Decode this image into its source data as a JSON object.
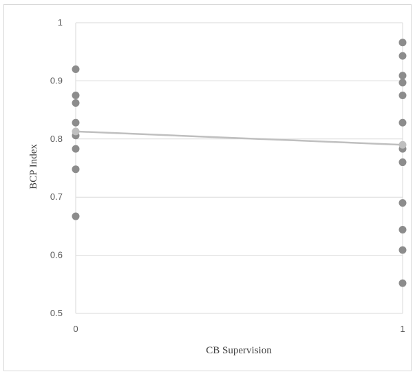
{
  "chart_data": {
    "type": "scatter",
    "xlabel": "CB Supervision",
    "ylabel": "BCP Index",
    "xlim": [
      0,
      1
    ],
    "ylim": [
      0.5,
      1
    ],
    "x_ticks": [
      "0",
      "1"
    ],
    "y_ticks": [
      "0.5",
      "0.6",
      "0.7",
      "0.8",
      "0.9",
      "1"
    ],
    "grid": "horizontal",
    "legend": "none",
    "series": [
      {
        "type": "scatter",
        "color": "#8c8c8c",
        "points": [
          {
            "x": 0,
            "y": 0.92
          },
          {
            "x": 0,
            "y": 0.875
          },
          {
            "x": 0,
            "y": 0.862
          },
          {
            "x": 0,
            "y": 0.828
          },
          {
            "x": 0,
            "y": 0.806
          },
          {
            "x": 0,
            "y": 0.783
          },
          {
            "x": 0,
            "y": 0.748
          },
          {
            "x": 0,
            "y": 0.667
          },
          {
            "x": 1,
            "y": 0.966
          },
          {
            "x": 1,
            "y": 0.943
          },
          {
            "x": 1,
            "y": 0.909
          },
          {
            "x": 1,
            "y": 0.897
          },
          {
            "x": 1,
            "y": 0.875
          },
          {
            "x": 1,
            "y": 0.828
          },
          {
            "x": 1,
            "y": 0.783
          },
          {
            "x": 1,
            "y": 0.76
          },
          {
            "x": 1,
            "y": 0.69
          },
          {
            "x": 1,
            "y": 0.644
          },
          {
            "x": 1,
            "y": 0.609
          },
          {
            "x": 1,
            "y": 0.552
          }
        ]
      },
      {
        "type": "line",
        "color": "#bfbfbf",
        "points": [
          {
            "x": 0,
            "y": 0.813
          },
          {
            "x": 1,
            "y": 0.79
          }
        ]
      }
    ]
  }
}
